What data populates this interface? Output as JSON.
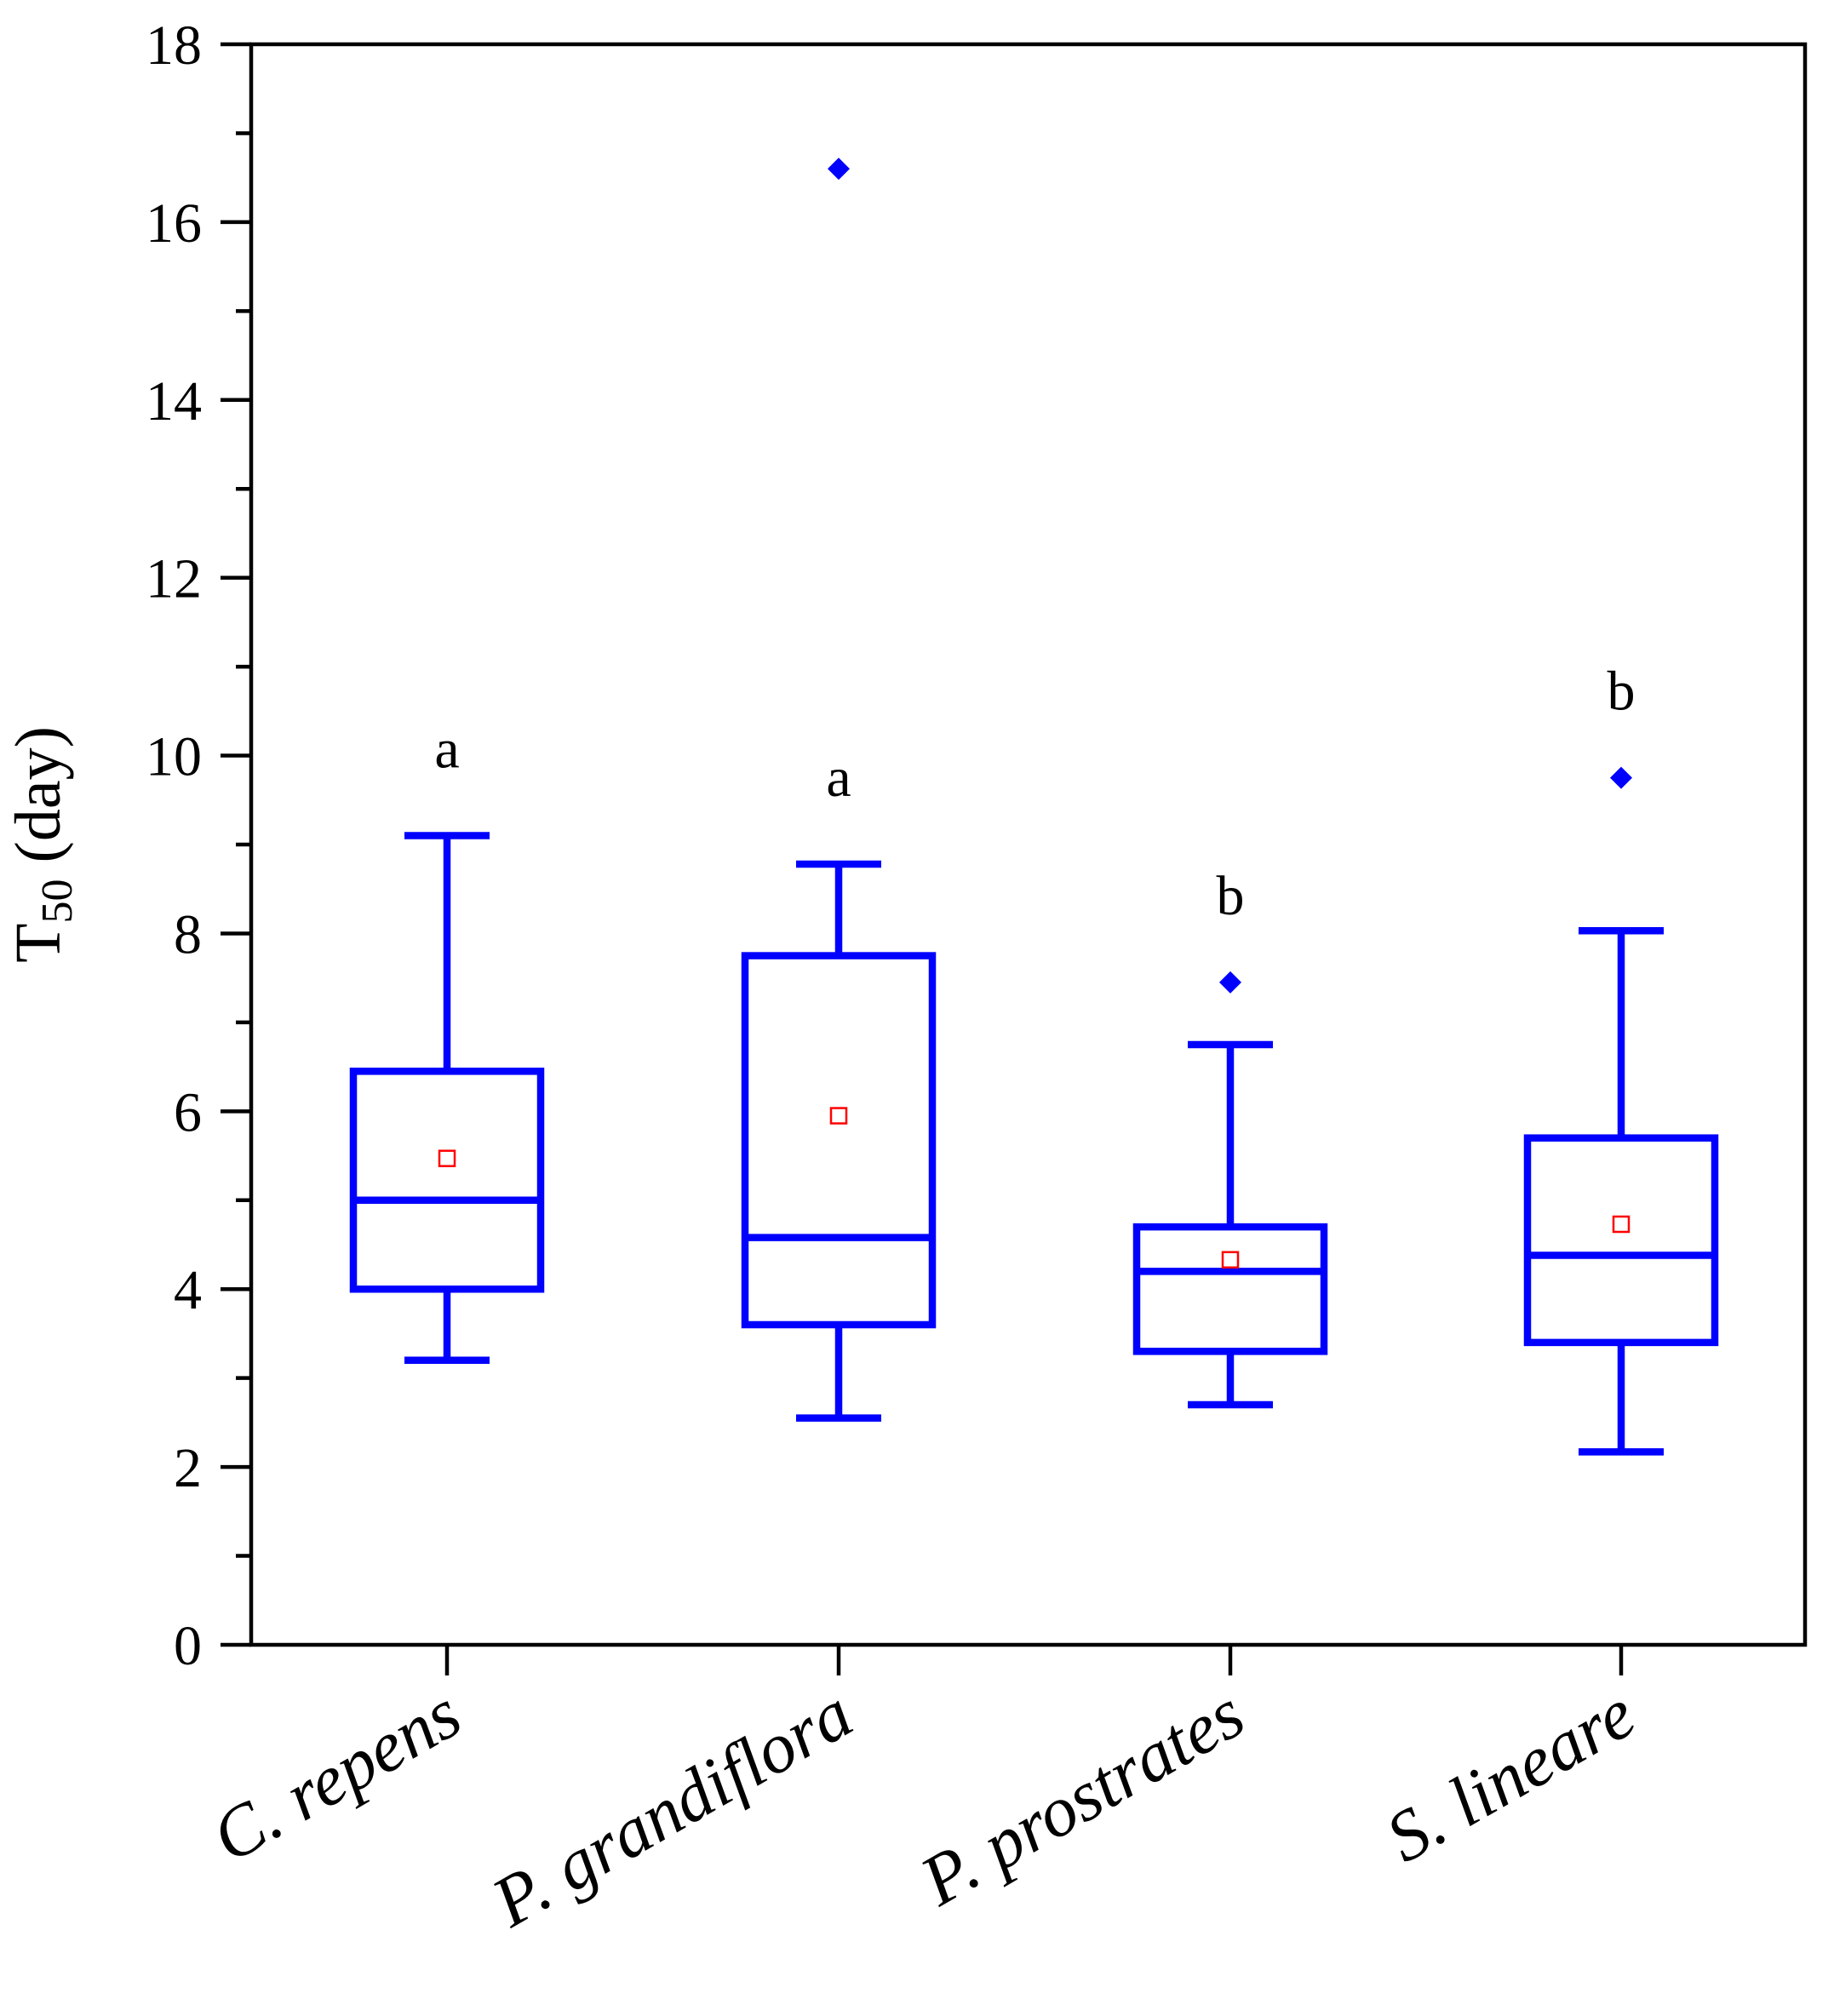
{
  "chart_data": {
    "type": "box",
    "title": "",
    "xlabel": "",
    "ylabel": "T",
    "ylabel_subscript": "50",
    "ylabel_unit": "(day)",
    "ylim": [
      0,
      18
    ],
    "yticks": [
      0,
      2,
      4,
      6,
      8,
      10,
      12,
      14,
      16,
      18
    ],
    "ytick_labels": [
      "0",
      "2",
      "4",
      "6",
      "8",
      "10",
      "12",
      "14",
      "16",
      "18"
    ],
    "categories": [
      "C. repens",
      "P. grandiflora",
      "P. prostrates",
      "S. lineare"
    ],
    "series": [
      {
        "name": "C. repens",
        "min": 3.2,
        "q1": 4.0,
        "median": 5.0,
        "q3": 6.45,
        "max": 9.1,
        "mean": 5.47,
        "outliers": [],
        "letter": "a"
      },
      {
        "name": "P. grandiflora",
        "min": 2.55,
        "q1": 3.6,
        "median": 4.58,
        "q3": 7.75,
        "max": 8.78,
        "mean": 5.95,
        "outliers": [
          16.6
        ],
        "letter": "a"
      },
      {
        "name": "P. prostrates",
        "min": 2.7,
        "q1": 3.3,
        "median": 4.2,
        "q3": 4.7,
        "max": 6.75,
        "mean": 4.33,
        "outliers": [
          7.45
        ],
        "letter": "b"
      },
      {
        "name": "S. lineare",
        "min": 2.17,
        "q1": 3.4,
        "median": 4.38,
        "q3": 5.7,
        "max": 8.03,
        "mean": 4.73,
        "outliers": [
          9.75
        ],
        "letter": "b"
      }
    ],
    "colors": {
      "box": "#0000ff",
      "mean": "#ff0000",
      "outlier": "#0000ff",
      "axis": "#000000"
    }
  }
}
